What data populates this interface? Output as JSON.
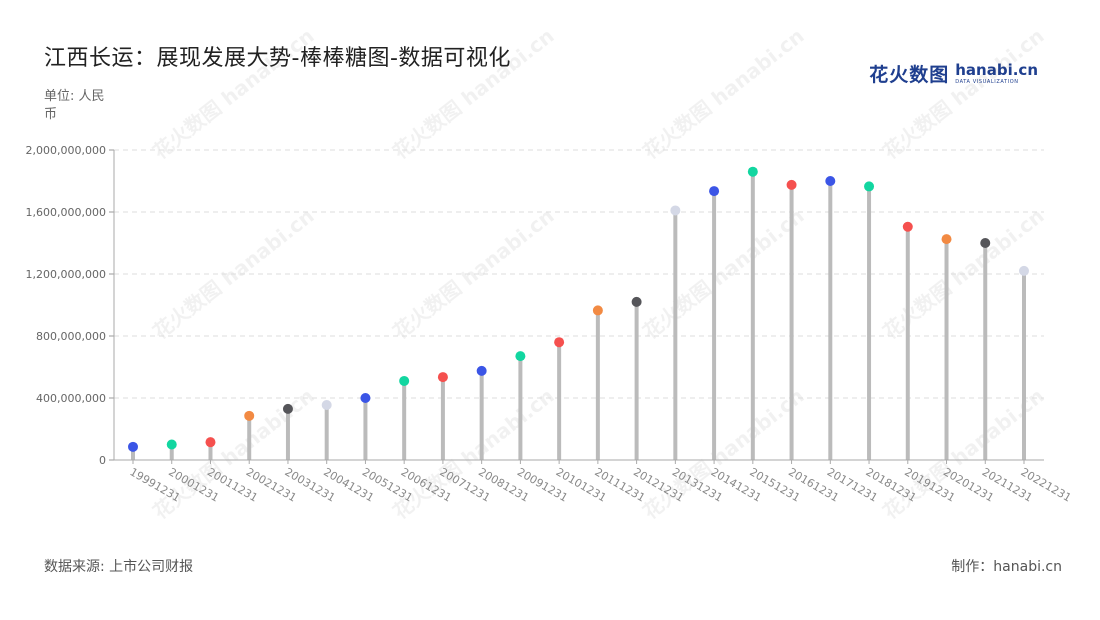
{
  "title": "江西长运：展现发展大势-棒棒糖图-数据可视化",
  "unit": "单位: 人民币",
  "source": "数据来源: 上市公司财报",
  "credit": "制作：hanabi.cn",
  "logo": {
    "cn": "花火数图",
    "en": "hanabi.cn",
    "sub": "DATA VISUALIZATION"
  },
  "colors": {
    "accent": "#1f3f8f",
    "stem": "#bbbbbb",
    "grid": "#dddddd",
    "palette": [
      "#3b55e6",
      "#12d6a0",
      "#f5504e",
      "#f28a43",
      "#555559",
      "#d4d8e6"
    ]
  },
  "chart_data": {
    "type": "lollipop",
    "categories": [
      "19991231",
      "20001231",
      "20011231",
      "20021231",
      "20031231",
      "20041231",
      "20051231",
      "20061231",
      "20071231",
      "20081231",
      "20091231",
      "20101231",
      "20111231",
      "20121231",
      "20131231",
      "20141231",
      "20151231",
      "20161231",
      "20171231",
      "20181231",
      "20191231",
      "20201231",
      "20211231",
      "20221231"
    ],
    "values": [
      85000000,
      100000000,
      115000000,
      285000000,
      330000000,
      355000000,
      400000000,
      510000000,
      535000000,
      575000000,
      670000000,
      760000000,
      965000000,
      1020000000,
      1610000000,
      1735000000,
      1860000000,
      1775000000,
      1800000000,
      1765000000,
      1505000000,
      1425000000,
      1400000000,
      1220000000
    ],
    "point_colors": [
      "#3b55e6",
      "#12d6a0",
      "#f5504e",
      "#f28a43",
      "#555559",
      "#d4d8e6",
      "#3b55e6",
      "#12d6a0",
      "#f5504e",
      "#3b55e6",
      "#12d6a0",
      "#f5504e",
      "#f28a43",
      "#555559",
      "#d4d8e6",
      "#3b55e6",
      "#12d6a0",
      "#f5504e",
      "#3b55e6",
      "#12d6a0",
      "#f5504e",
      "#f28a43",
      "#555559",
      "#d4d8e6"
    ],
    "ylim": [
      0,
      2000000000
    ],
    "yticks": [
      0,
      400000000,
      800000000,
      1200000000,
      1600000000,
      2000000000
    ],
    "ytick_labels": [
      "0",
      "400,000,000",
      "800,000,000",
      "1,200,000,000",
      "1,600,000,000",
      "2,000,000,000"
    ],
    "grid": true
  }
}
